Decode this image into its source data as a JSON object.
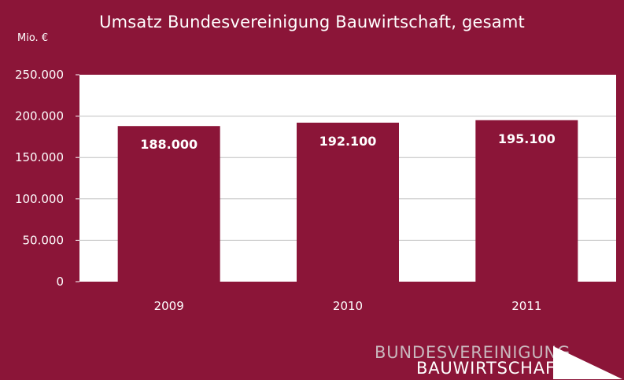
{
  "title": "Umsatz Bundesvereinigung Bauwirtschaft, gesamt",
  "unit_label": "Mio. €",
  "logo": {
    "line1": "BUNDESVEREINIGUNG",
    "line2": "BAUWIRTSCHAFT"
  },
  "colors": {
    "background": "#8b1538",
    "bar": "#8b1538",
    "plot_area": "#ffffff",
    "text": "#ffffff"
  },
  "chart_data": {
    "type": "bar",
    "title": "Umsatz Bundesvereinigung Bauwirtschaft, gesamt",
    "ylabel": "Mio. €",
    "xlabel": "",
    "categories": [
      "2009",
      "2010",
      "2011"
    ],
    "values": [
      188000,
      192100,
      195100
    ],
    "value_labels": [
      "188.000",
      "192.100",
      "195.100"
    ],
    "ylim": [
      0,
      250000
    ],
    "yticks": [
      0,
      50000,
      100000,
      150000,
      200000,
      250000
    ],
    "ytick_labels": [
      "0",
      "50.000",
      "100.000",
      "150.000",
      "200.000",
      "250.000"
    ],
    "grid": true,
    "legend": "none"
  }
}
